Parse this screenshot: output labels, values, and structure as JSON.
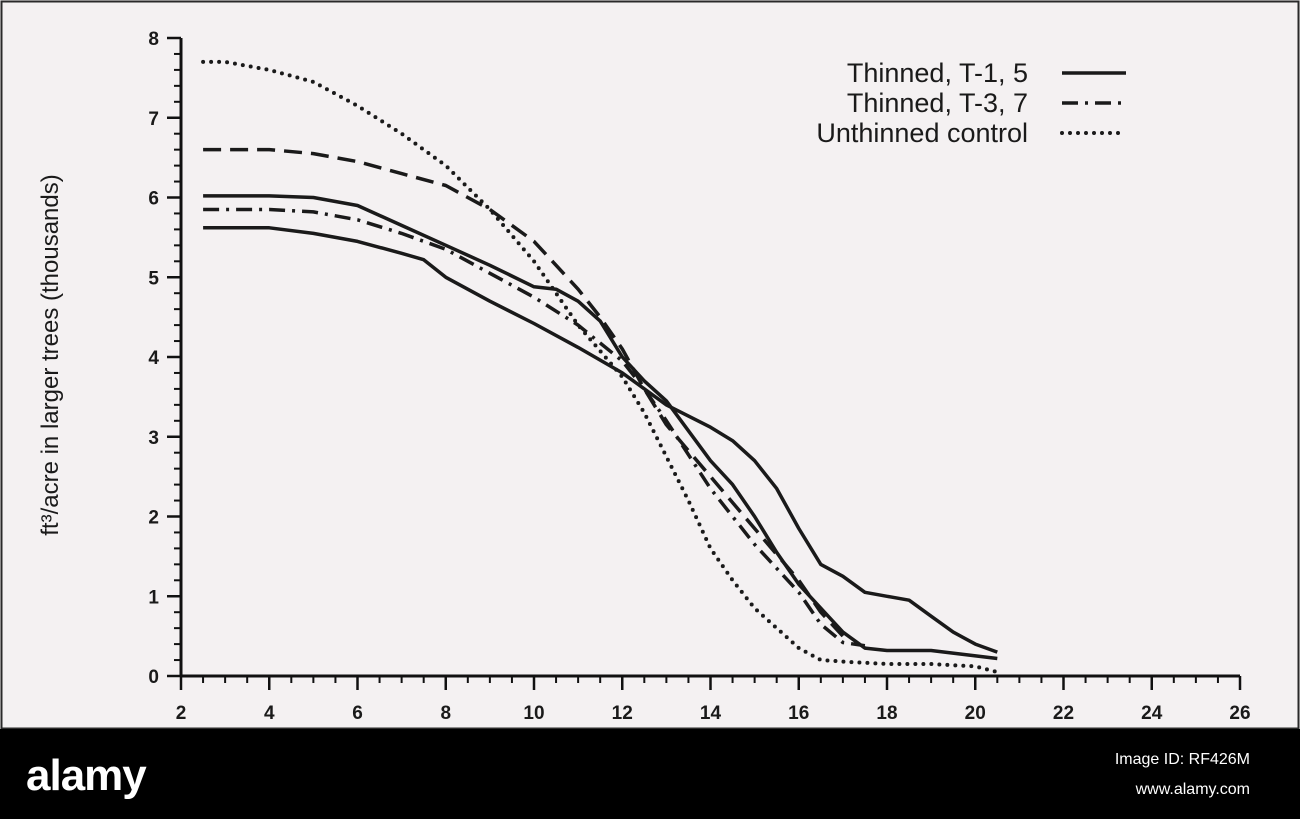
{
  "chart_data": {
    "type": "line",
    "title": "",
    "ylabel": "ft³/acre in larger trees (thousands)",
    "xlabel": "",
    "xlim": [
      2,
      26
    ],
    "ylim": [
      0,
      8
    ],
    "x_ticks": [
      "2",
      "4",
      "6",
      "8",
      "10",
      "12",
      "14",
      "16",
      "18",
      "20",
      "22",
      "24",
      "26"
    ],
    "y_ticks": [
      "0",
      "1",
      "2",
      "3",
      "4",
      "5",
      "6",
      "7",
      "8"
    ],
    "grid": false,
    "legend_position": "top-right",
    "legend": [
      {
        "label": "Thinned, T-1, 5",
        "style": "solid"
      },
      {
        "label": "Thinned, T-3, 7",
        "style": "dash-dot"
      },
      {
        "label": "Unthinned control",
        "style": "dotted"
      }
    ],
    "series": [
      {
        "style": "solid",
        "x": [
          2.5,
          4,
          5,
          6,
          7,
          8,
          9,
          10,
          10.5,
          11,
          11.5,
          12,
          12.5,
          13,
          14,
          14.5,
          15,
          15.5,
          16,
          16.5,
          17,
          17.5,
          18,
          19,
          20.5
        ],
        "y": [
          6.02,
          6.02,
          6.0,
          5.9,
          5.65,
          5.4,
          5.15,
          4.88,
          4.85,
          4.7,
          4.45,
          4.0,
          3.7,
          3.45,
          2.7,
          2.4,
          2.0,
          1.55,
          1.15,
          0.85,
          0.55,
          0.35,
          0.32,
          0.32,
          0.22
        ]
      },
      {
        "style": "solid",
        "x": [
          2.5,
          4,
          5,
          6,
          7,
          7.5,
          8,
          9,
          10,
          11,
          12,
          13,
          14,
          14.5,
          15,
          15.5,
          16,
          16.5,
          17,
          17.5,
          18,
          18.5,
          19,
          19.5,
          20,
          20.5
        ],
        "y": [
          5.62,
          5.62,
          5.55,
          5.45,
          5.3,
          5.22,
          5.0,
          4.7,
          4.42,
          4.12,
          3.8,
          3.4,
          3.12,
          2.95,
          2.7,
          2.35,
          1.85,
          1.4,
          1.25,
          1.05,
          1.0,
          0.95,
          0.75,
          0.55,
          0.4,
          0.3
        ]
      },
      {
        "style": "dash-dot",
        "x": [
          2.5,
          4,
          5,
          6,
          7,
          8,
          9,
          10,
          11,
          12,
          12.5,
          13,
          14,
          15,
          16,
          16.5,
          17,
          17.5
        ],
        "y": [
          5.85,
          5.85,
          5.82,
          5.72,
          5.55,
          5.35,
          5.05,
          4.75,
          4.4,
          3.95,
          3.6,
          3.2,
          2.35,
          1.65,
          1.05,
          0.65,
          0.42,
          0.38
        ]
      },
      {
        "style": "dashed",
        "x": [
          2.5,
          4,
          5,
          6,
          7,
          8,
          9,
          10,
          10.5,
          11,
          11.5,
          12,
          12.5,
          13,
          14,
          15,
          16,
          16.5,
          17
        ],
        "y": [
          6.6,
          6.6,
          6.55,
          6.45,
          6.3,
          6.15,
          5.85,
          5.45,
          5.15,
          4.85,
          4.5,
          4.1,
          3.6,
          3.15,
          2.5,
          1.85,
          1.2,
          0.8,
          0.5
        ]
      },
      {
        "style": "dotted",
        "x": [
          2.5,
          3,
          4,
          5,
          6,
          7,
          8,
          9,
          10,
          11,
          12,
          12.5,
          13,
          13.5,
          14,
          14.5,
          15,
          15.5,
          16,
          16.5,
          17,
          18,
          19,
          20,
          20.5
        ],
        "y": [
          7.7,
          7.7,
          7.6,
          7.45,
          7.15,
          6.8,
          6.4,
          5.85,
          5.2,
          4.4,
          3.75,
          3.3,
          2.75,
          2.2,
          1.6,
          1.2,
          0.85,
          0.6,
          0.35,
          0.2,
          0.18,
          0.15,
          0.15,
          0.12,
          0.05
        ]
      }
    ]
  },
  "watermark": {
    "brand": "alamy",
    "image_id": "Image ID: RF426M",
    "site": "www.alamy.com"
  }
}
